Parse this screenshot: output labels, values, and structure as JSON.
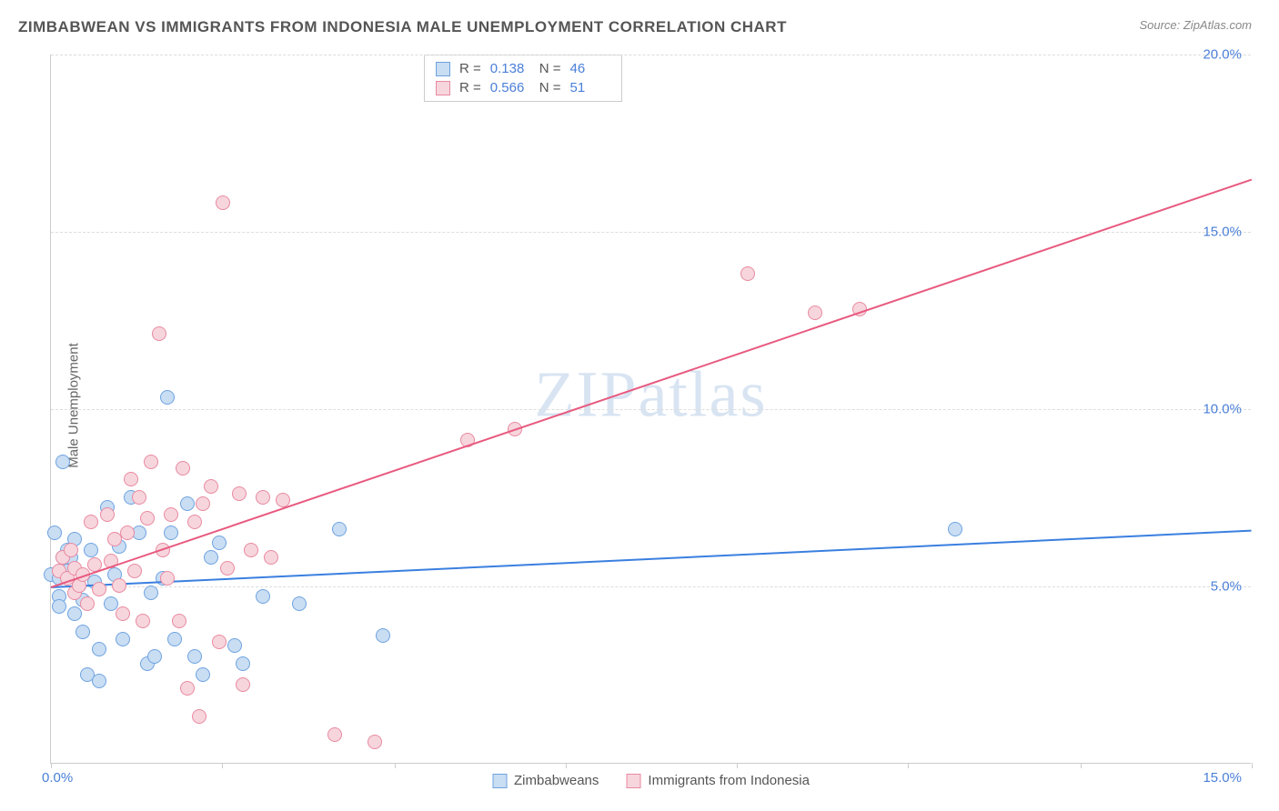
{
  "title": "ZIMBABWEAN VS IMMIGRANTS FROM INDONESIA MALE UNEMPLOYMENT CORRELATION CHART",
  "source": "Source: ZipAtlas.com",
  "y_axis_label": "Male Unemployment",
  "watermark": "ZIPatlas",
  "chart": {
    "type": "scatter",
    "xlim": [
      0,
      15
    ],
    "ylim": [
      0,
      20
    ],
    "x_origin_label": "0.0%",
    "x_max_label": "15.0%",
    "y_ticks": [
      5.0,
      10.0,
      15.0,
      20.0
    ],
    "y_tick_labels": [
      "5.0%",
      "10.0%",
      "15.0%",
      "20.0%"
    ],
    "x_tick_positions": [
      0,
      2.14,
      4.29,
      6.43,
      8.57,
      10.71,
      12.86,
      15
    ],
    "background_color": "#ffffff",
    "grid_color": "#dddddd",
    "axis_color": "#cccccc",
    "tick_label_color": "#4a7fd8",
    "series": [
      {
        "name": "Zimbabweans",
        "fill_color": "#c9ddf3",
        "stroke_color": "#6ea3e0",
        "line_color": "#3a7fe0",
        "R": "0.138",
        "N": "46",
        "trend": {
          "x1": 0,
          "y1": 5.0,
          "x2": 15,
          "y2": 6.6
        },
        "points": [
          [
            0.0,
            5.3
          ],
          [
            0.05,
            6.5
          ],
          [
            0.1,
            5.2
          ],
          [
            0.1,
            4.7
          ],
          [
            0.1,
            4.4
          ],
          [
            0.15,
            8.5
          ],
          [
            0.2,
            6.0
          ],
          [
            0.2,
            5.4
          ],
          [
            0.25,
            5.8
          ],
          [
            0.3,
            6.3
          ],
          [
            0.3,
            4.2
          ],
          [
            0.35,
            5.0
          ],
          [
            0.4,
            4.6
          ],
          [
            0.4,
            3.7
          ],
          [
            0.45,
            2.5
          ],
          [
            0.5,
            6.0
          ],
          [
            0.55,
            5.1
          ],
          [
            0.6,
            3.2
          ],
          [
            0.6,
            2.3
          ],
          [
            0.7,
            7.2
          ],
          [
            0.75,
            4.5
          ],
          [
            0.8,
            5.3
          ],
          [
            0.85,
            6.1
          ],
          [
            0.9,
            3.5
          ],
          [
            1.0,
            7.5
          ],
          [
            1.1,
            6.5
          ],
          [
            1.2,
            2.8
          ],
          [
            1.25,
            4.8
          ],
          [
            1.3,
            3.0
          ],
          [
            1.4,
            5.2
          ],
          [
            1.45,
            10.3
          ],
          [
            1.5,
            6.5
          ],
          [
            1.55,
            3.5
          ],
          [
            1.7,
            7.3
          ],
          [
            1.8,
            3.0
          ],
          [
            1.9,
            2.5
          ],
          [
            2.0,
            5.8
          ],
          [
            2.1,
            6.2
          ],
          [
            2.3,
            3.3
          ],
          [
            2.4,
            2.8
          ],
          [
            2.65,
            4.7
          ],
          [
            3.1,
            4.5
          ],
          [
            3.6,
            6.6
          ],
          [
            4.15,
            3.6
          ],
          [
            11.3,
            6.6
          ],
          [
            0.15,
            5.8
          ]
        ]
      },
      {
        "name": "Immigrants from Indonesia",
        "fill_color": "#f7d5dd",
        "stroke_color": "#e88aa0",
        "line_color": "#e85a7f",
        "R": "0.566",
        "N": "51",
        "trend": {
          "x1": 0,
          "y1": 5.0,
          "x2": 15,
          "y2": 16.5
        },
        "points": [
          [
            0.1,
            5.4
          ],
          [
            0.15,
            5.8
          ],
          [
            0.2,
            5.2
          ],
          [
            0.25,
            6.0
          ],
          [
            0.3,
            5.5
          ],
          [
            0.3,
            4.8
          ],
          [
            0.35,
            5.0
          ],
          [
            0.4,
            5.3
          ],
          [
            0.45,
            4.5
          ],
          [
            0.5,
            6.8
          ],
          [
            0.55,
            5.6
          ],
          [
            0.6,
            4.9
          ],
          [
            0.7,
            7.0
          ],
          [
            0.75,
            5.7
          ],
          [
            0.8,
            6.3
          ],
          [
            0.85,
            5.0
          ],
          [
            0.9,
            4.2
          ],
          [
            0.95,
            6.5
          ],
          [
            1.0,
            8.0
          ],
          [
            1.05,
            5.4
          ],
          [
            1.1,
            7.5
          ],
          [
            1.15,
            4.0
          ],
          [
            1.2,
            6.9
          ],
          [
            1.25,
            8.5
          ],
          [
            1.35,
            12.1
          ],
          [
            1.4,
            6.0
          ],
          [
            1.45,
            5.2
          ],
          [
            1.5,
            7.0
          ],
          [
            1.6,
            4.0
          ],
          [
            1.65,
            8.3
          ],
          [
            1.7,
            2.1
          ],
          [
            1.8,
            6.8
          ],
          [
            1.85,
            1.3
          ],
          [
            1.9,
            7.3
          ],
          [
            2.0,
            7.8
          ],
          [
            2.1,
            3.4
          ],
          [
            2.15,
            15.8
          ],
          [
            2.2,
            5.5
          ],
          [
            2.35,
            7.6
          ],
          [
            2.4,
            2.2
          ],
          [
            2.5,
            6.0
          ],
          [
            2.65,
            7.5
          ],
          [
            2.75,
            5.8
          ],
          [
            2.9,
            7.4
          ],
          [
            3.55,
            0.8
          ],
          [
            4.05,
            0.6
          ],
          [
            5.2,
            9.1
          ],
          [
            5.8,
            9.4
          ],
          [
            8.7,
            13.8
          ],
          [
            9.55,
            12.7
          ],
          [
            10.1,
            12.8
          ]
        ]
      }
    ]
  },
  "stats_box": {
    "R_label": "R =",
    "N_label": "N ="
  },
  "legend": {
    "series1": "Zimbabweans",
    "series2": "Immigrants from Indonesia"
  }
}
